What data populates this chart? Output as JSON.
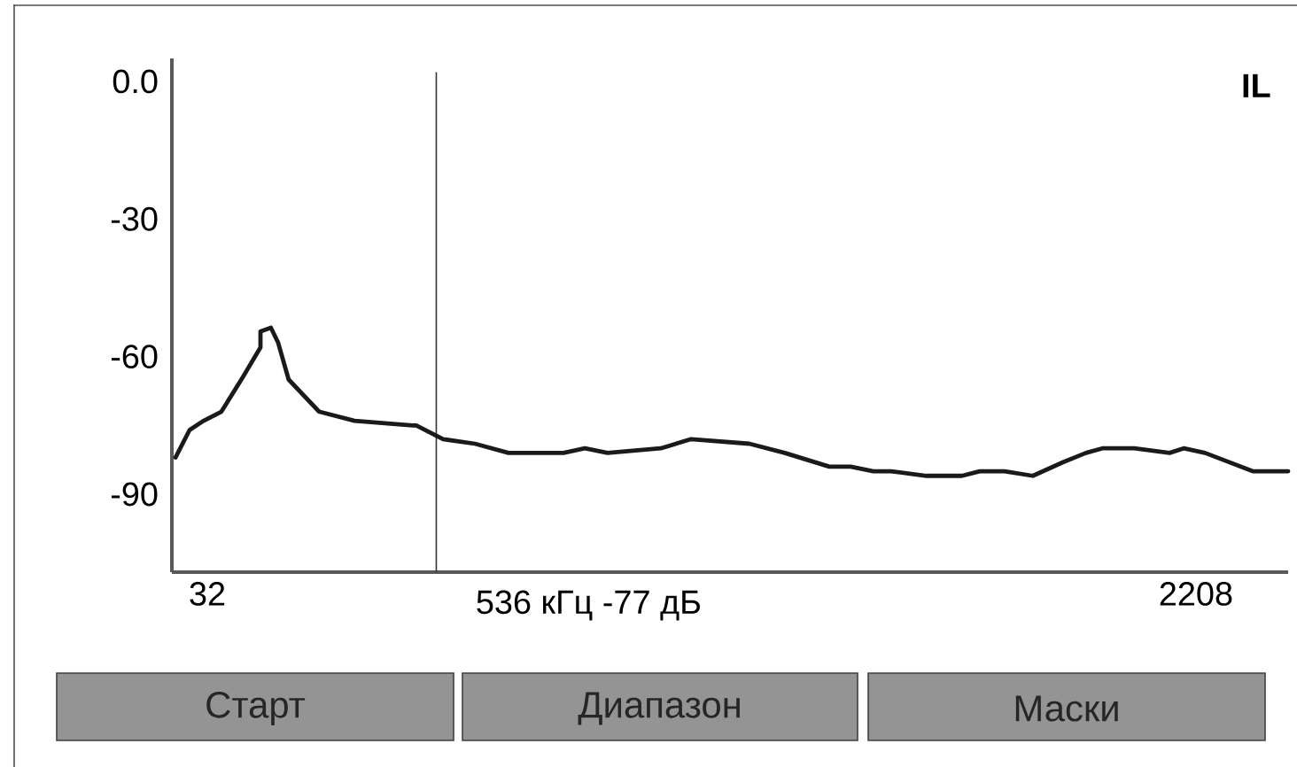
{
  "chart_data": {
    "type": "line",
    "title": "IL",
    "color": "#1a1a1a",
    "x": [
      -38,
      -7,
      24,
      63,
      110,
      149,
      149,
      172,
      188,
      211,
      278,
      356,
      484,
      492,
      551,
      621,
      695,
      816,
      863,
      913,
      1030,
      1097,
      1225,
      1303,
      1401,
      1448,
      1498,
      1537,
      1615,
      1693,
      1732,
      1787,
      1849,
      1916,
      1966,
      2002,
      2072,
      2150,
      2181,
      2228,
      2333,
      2411
    ],
    "values": [
      -82,
      -76,
      -74,
      -72,
      -64.5,
      -58,
      -54.5,
      -53.7,
      -57,
      -65,
      -72,
      -74,
      -75,
      -75,
      -78,
      -79,
      -81,
      -81,
      -80,
      -81,
      -80,
      -78,
      -79,
      -81,
      -84,
      -84,
      -85,
      -85,
      -86,
      -86,
      -85,
      -85,
      -86,
      -83,
      -81,
      -80,
      -80,
      -81,
      -80,
      -81,
      -85,
      -85
    ],
    "xlim": [
      -46,
      2411
    ],
    "ylim": [
      -107,
      5
    ],
    "xticks": [
      32,
      2208
    ],
    "yticks": [
      {
        "value": 0,
        "label": "0.0"
      },
      -30,
      -60,
      -90
    ],
    "ref_lines": [
      {
        "axis": "x",
        "value": 536,
        "label": "536 кГц  -77 дБ",
        "color": "#333333"
      }
    ],
    "annotations": [
      "Старт",
      "Диапазон",
      "Маски"
    ]
  }
}
